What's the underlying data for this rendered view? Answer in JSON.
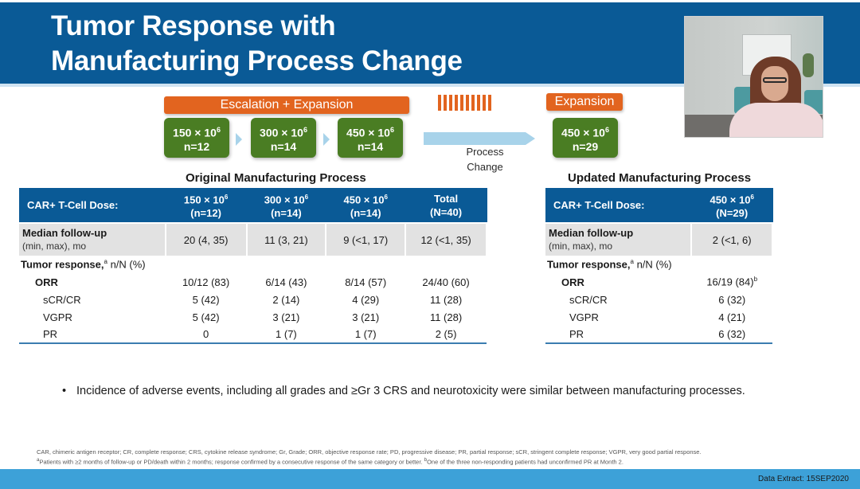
{
  "slide": {
    "title_line1": "Tumor Response with",
    "title_line2": "Manufacturing Process Change",
    "data_extract": "Data Extract: 15SEP2020"
  },
  "schema": {
    "escalation_label": "Escalation + Expansion",
    "expansion_label": "Expansion",
    "process_change_line1": "Process",
    "process_change_line2": "Change",
    "dose_boxes": [
      {
        "dose": "150 × 10",
        "exp": "6",
        "n": "n=12"
      },
      {
        "dose": "300 × 10",
        "exp": "6",
        "n": "n=14"
      },
      {
        "dose": "450 × 10",
        "exp": "6",
        "n": "n=14"
      },
      {
        "dose": "450 × 10",
        "exp": "6",
        "n": "n=29"
      }
    ]
  },
  "original": {
    "section_title": "Original Manufacturing Process",
    "header_label": "CAR+ T-Cell Dose:",
    "columns": [
      {
        "dose": "150 × 10",
        "exp": "6",
        "n": "(n=12)"
      },
      {
        "dose": "300 × 10",
        "exp": "6",
        "n": "(n=14)"
      },
      {
        "dose": "450 × 10",
        "exp": "6",
        "n": "(n=14)"
      },
      {
        "dose": "Total",
        "exp": "",
        "n": "(N=40)"
      }
    ],
    "followup_label": "Median follow-up",
    "followup_sublabel": "(min, max), mo",
    "followup_values": [
      "20 (4, 35)",
      "11 (3, 21)",
      "9 (<1, 17)",
      "12 (<1, 35)"
    ],
    "tumor_label": "Tumor response,",
    "tumor_sup": "a",
    "tumor_unit": " n/N (%)",
    "rows": [
      {
        "label": "ORR",
        "values": [
          "10/12 (83)",
          "6/14 (43)",
          "8/14 (57)",
          "24/40 (60)"
        ]
      },
      {
        "label": "sCR/CR",
        "values": [
          "5 (42)",
          "2 (14)",
          "4 (29)",
          "11 (28)"
        ]
      },
      {
        "label": "VGPR",
        "values": [
          "5 (42)",
          "3 (21)",
          "3 (21)",
          "11 (28)"
        ]
      },
      {
        "label": "PR",
        "values": [
          "0",
          "1 (7)",
          "1 (7)",
          "2 (5)"
        ]
      }
    ]
  },
  "updated": {
    "section_title": "Updated Manufacturing Process",
    "header_label": "CAR+ T-Cell Dose:",
    "column": {
      "dose": "450 × 10",
      "exp": "6",
      "n": "(N=29)"
    },
    "followup_label": "Median follow-up",
    "followup_sublabel": "(min, max), mo",
    "followup_value": "2 (<1, 6)",
    "tumor_label": "Tumor response,",
    "tumor_sup": "a",
    "tumor_unit": " n/N (%)",
    "rows": [
      {
        "label": "ORR",
        "value": "16/19 (84)",
        "sup": "b"
      },
      {
        "label": "sCR/CR",
        "value": "6 (32)",
        "sup": ""
      },
      {
        "label": "VGPR",
        "value": "4 (21)",
        "sup": ""
      },
      {
        "label": "PR",
        "value": "6 (32)",
        "sup": ""
      }
    ]
  },
  "bullet": {
    "marker": "•",
    "text": "Incidence of adverse events, including all grades and ≥Gr 3 CRS and neurotoxicity were similar between manufacturing processes."
  },
  "footnotes": {
    "line1": "CAR, chimeric antigen receptor; CR, complete response; CRS, cytokine release syndrome; Gr, Grade;  ORR, objective response rate; PD, progressive disease; PR, partial response;  sCR, stringent complete response; VGPR, very good partial response.",
    "line2_sup_a": "a",
    "line2a": "Patients with ≥2 months of follow-up or PD/death within 2 months; response confirmed by a consecutive response of the same category or better. ",
    "line2_sup_b": "b",
    "line2b": "One of the three non-responding patients had unconfirmed PR at Month 2."
  },
  "colors": {
    "title_blue": "#0a5a96",
    "orange": "#e2641f",
    "green": "#4a7d23",
    "footer_blue": "#3da1d8"
  }
}
